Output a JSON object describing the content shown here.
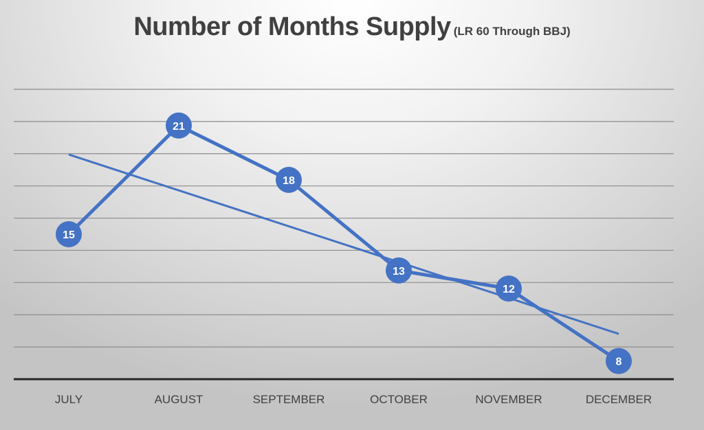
{
  "chart_data": {
    "type": "line",
    "title": "Number of Months Supply",
    "subtitle": "(LR 60 Through BBJ)",
    "xlabel": "",
    "ylabel": "",
    "categories": [
      "JULY",
      "AUGUST",
      "SEPTEMBER",
      "OCTOBER",
      "NOVEMBER",
      "DECEMBER"
    ],
    "series": [
      {
        "values": [
          15,
          21,
          18,
          13,
          12,
          8
        ]
      }
    ],
    "trendline": {
      "type": "linear",
      "start": 19.4,
      "end": 9.5
    },
    "ylim": [
      7,
      23
    ],
    "gridlines": true,
    "legend": "none",
    "colors": {
      "series": "#4472c4",
      "grid": "#8c8c8c",
      "axis": "#262626",
      "label_text": "#ffffff"
    }
  }
}
